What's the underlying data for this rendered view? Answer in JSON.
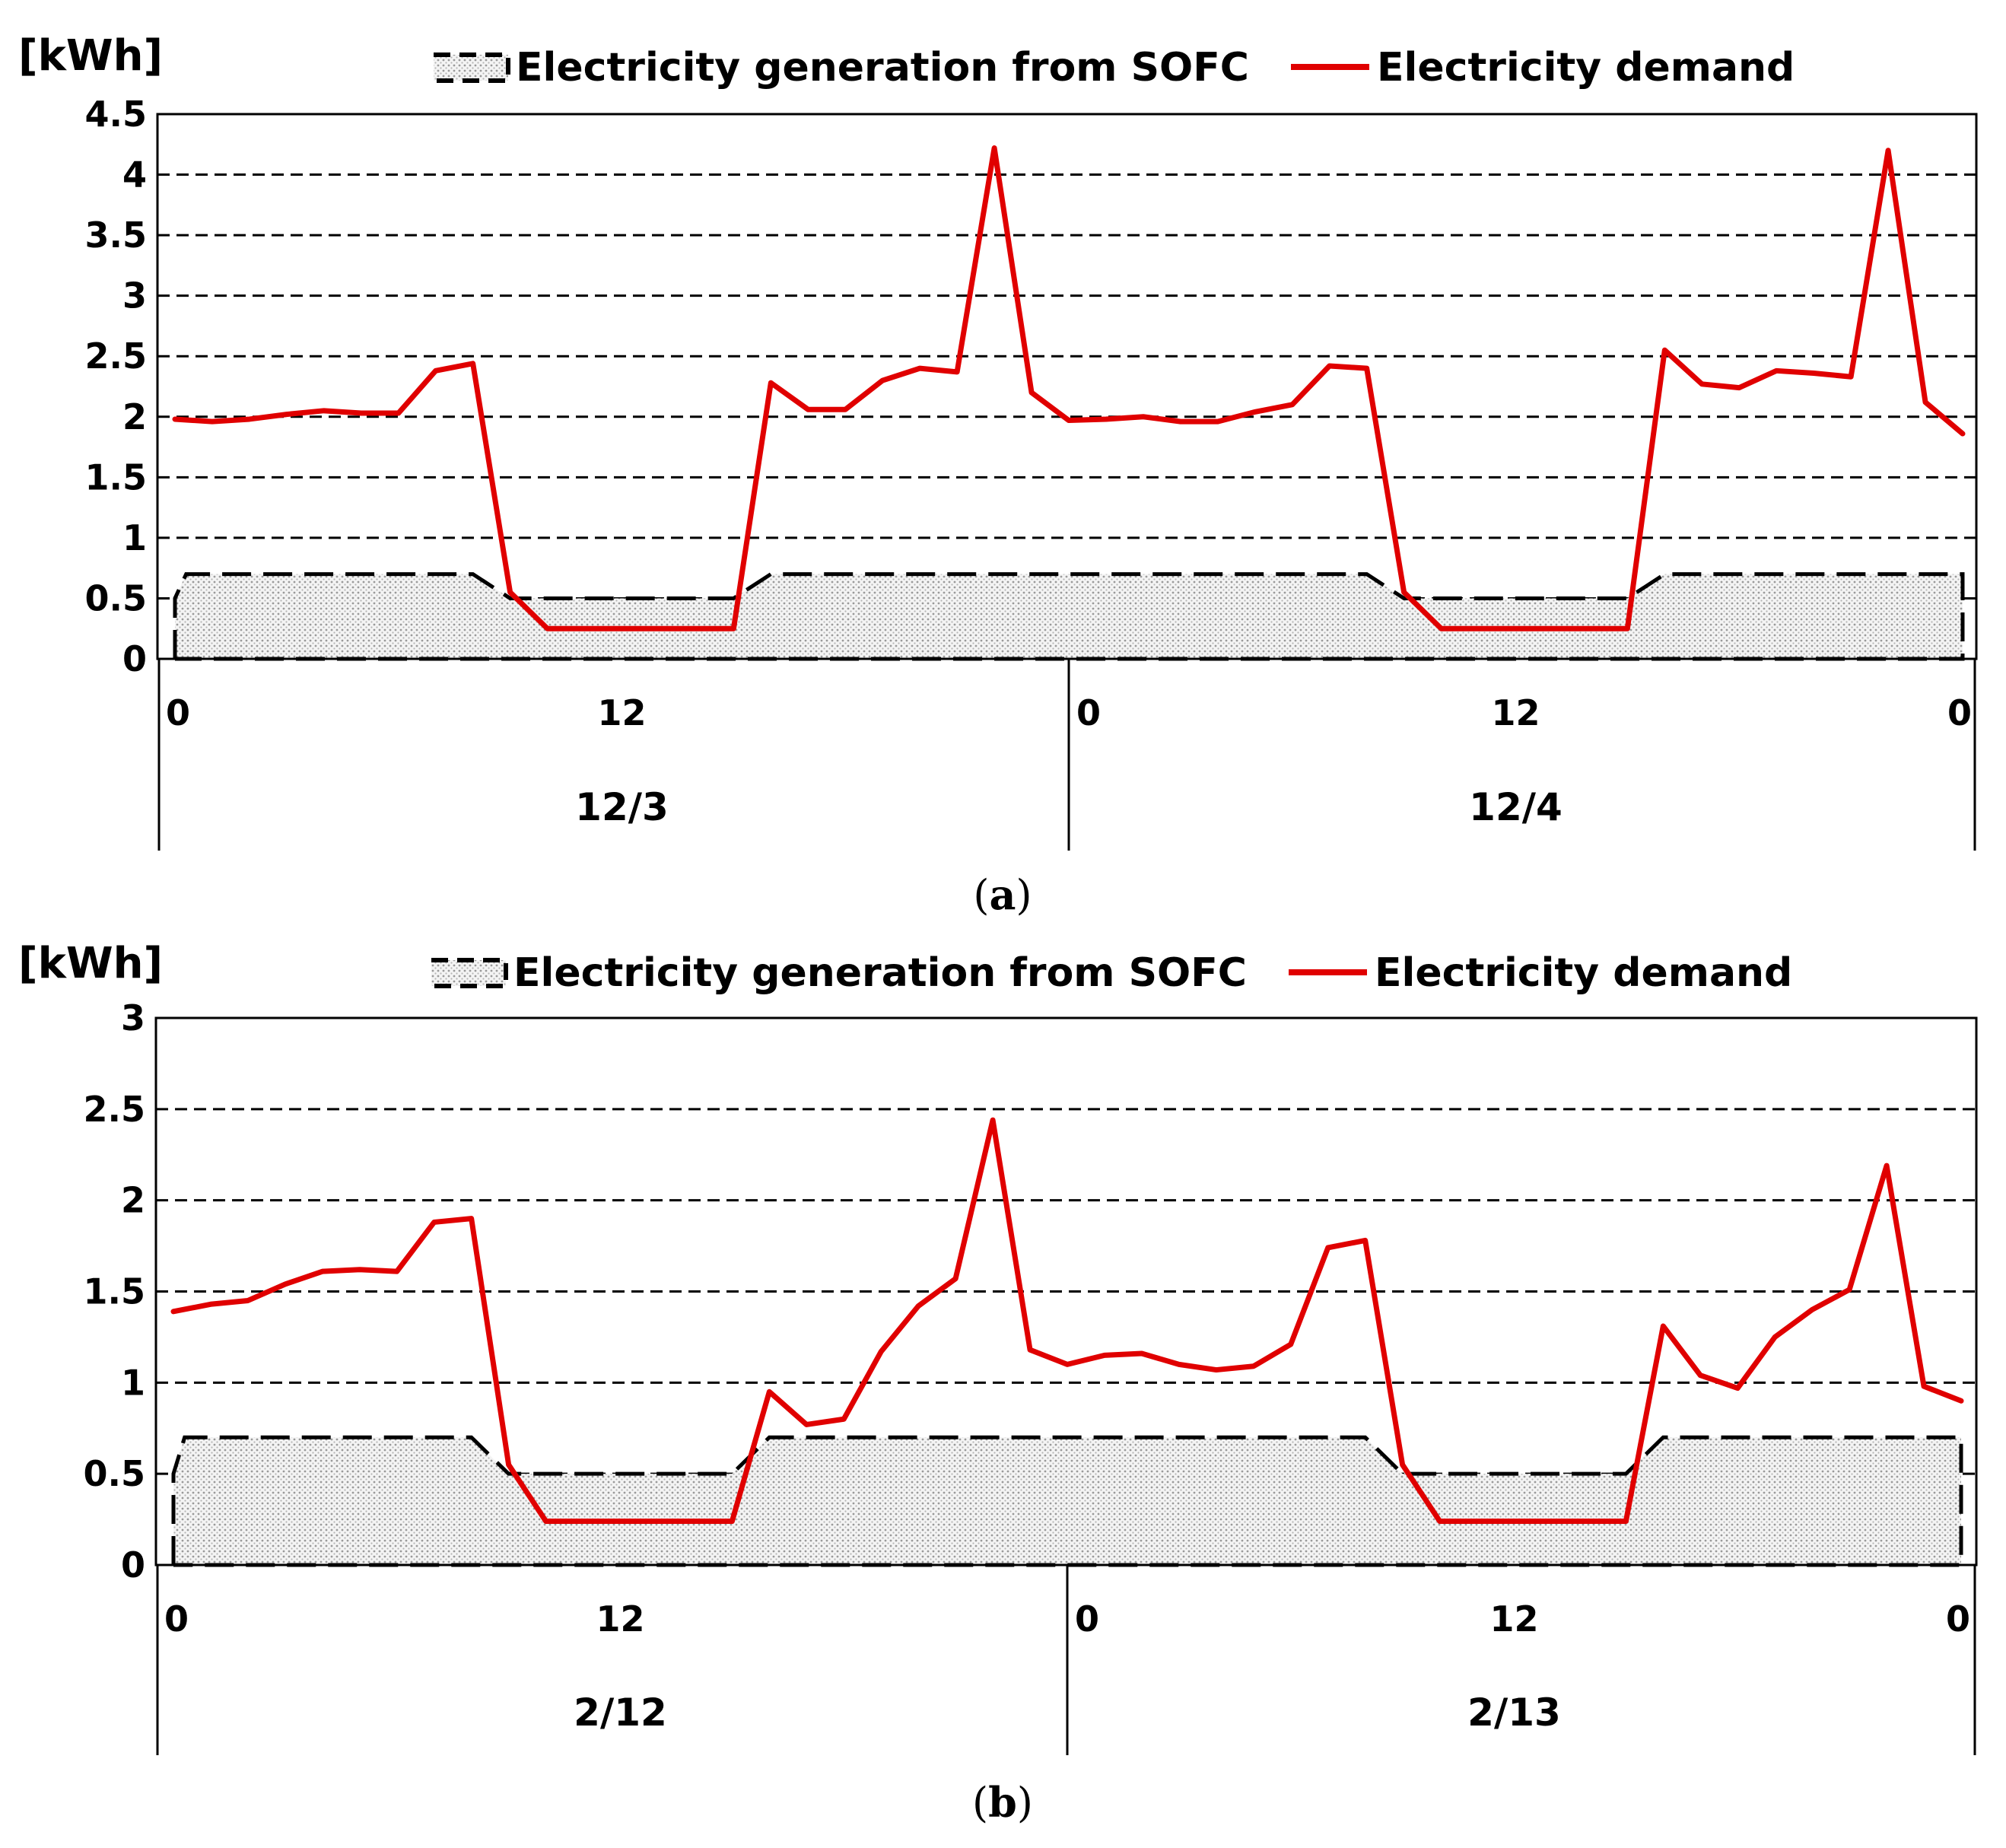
{
  "chart_data": [
    {
      "id": "a",
      "type": "area+line",
      "panel_label": "a",
      "unit_label": "[kWh]",
      "legend": [
        {
          "name": "Electricity generation from SOFC",
          "style": "dashed black border, dotted grey fill"
        },
        {
          "name": "Electricity demand",
          "style": "solid red line",
          "color": "#e00000"
        }
      ],
      "ylim": [
        0,
        4.5
      ],
      "y_ticks": [
        "0",
        "0.5",
        "1",
        "1.5",
        "2",
        "2.5",
        "3",
        "3.5",
        "4",
        "4.5"
      ],
      "y_tick_values": [
        0,
        0.5,
        1,
        1.5,
        2,
        2.5,
        3,
        3.5,
        4,
        4.5
      ],
      "grid": "horizontal dashed",
      "xlim": [
        0,
        48
      ],
      "x_ticks": [
        {
          "hour": 0,
          "label": "0"
        },
        {
          "hour": 12,
          "label": "12"
        },
        {
          "hour": 24,
          "label": "0"
        },
        {
          "hour": 36,
          "label": "12"
        },
        {
          "hour": 48,
          "label": "0"
        }
      ],
      "dates": [
        {
          "label": "12/3",
          "center_hour": 12
        },
        {
          "label": "12/4",
          "center_hour": 36
        }
      ],
      "series": [
        {
          "name": "Electricity generation from SOFC",
          "points": [
            [
              0,
              0.5
            ],
            [
              0.3,
              0.7
            ],
            [
              8,
              0.7
            ],
            [
              9,
              0.5
            ],
            [
              15,
              0.5
            ],
            [
              16,
              0.7
            ],
            [
              32,
              0.7
            ],
            [
              33,
              0.5
            ],
            [
              39,
              0.5
            ],
            [
              40,
              0.7
            ],
            [
              48,
              0.7
            ]
          ]
        },
        {
          "name": "Electricity demand",
          "points": [
            [
              0,
              1.98
            ],
            [
              1,
              1.96
            ],
            [
              2,
              1.98
            ],
            [
              3,
              2.02
            ],
            [
              4,
              2.05
            ],
            [
              5,
              2.03
            ],
            [
              6,
              2.03
            ],
            [
              7,
              2.38
            ],
            [
              8,
              2.44
            ],
            [
              9,
              0.55
            ],
            [
              10,
              0.25
            ],
            [
              11,
              0.25
            ],
            [
              12,
              0.25
            ],
            [
              13,
              0.25
            ],
            [
              14,
              0.25
            ],
            [
              15,
              0.25
            ],
            [
              16,
              2.28
            ],
            [
              17,
              2.06
            ],
            [
              18,
              2.06
            ],
            [
              19,
              2.3
            ],
            [
              20,
              2.4
            ],
            [
              21,
              2.37
            ],
            [
              22,
              4.22
            ],
            [
              23,
              2.2
            ],
            [
              24,
              1.97
            ],
            [
              25,
              1.98
            ],
            [
              26,
              2.0
            ],
            [
              27,
              1.96
            ],
            [
              28,
              1.96
            ],
            [
              29,
              2.04
            ],
            [
              30,
              2.1
            ],
            [
              31,
              2.42
            ],
            [
              32,
              2.4
            ],
            [
              33,
              0.55
            ],
            [
              34,
              0.25
            ],
            [
              35,
              0.25
            ],
            [
              36,
              0.25
            ],
            [
              37,
              0.25
            ],
            [
              38,
              0.25
            ],
            [
              39,
              0.25
            ],
            [
              40,
              2.55
            ],
            [
              41,
              2.27
            ],
            [
              42,
              2.24
            ],
            [
              43,
              2.38
            ],
            [
              44,
              2.36
            ],
            [
              45,
              2.33
            ],
            [
              46,
              4.2
            ],
            [
              47,
              2.12
            ],
            [
              48,
              1.86
            ]
          ]
        }
      ]
    },
    {
      "id": "b",
      "type": "area+line",
      "panel_label": "b",
      "unit_label": "[kWh]",
      "legend": [
        {
          "name": "Electricity generation from SOFC",
          "style": "dashed black border, dotted grey fill"
        },
        {
          "name": "Electricity demand",
          "style": "solid red line",
          "color": "#e00000"
        }
      ],
      "ylim": [
        0,
        3
      ],
      "y_ticks": [
        "0",
        "0.5",
        "1",
        "1.5",
        "2",
        "2.5",
        "3"
      ],
      "y_tick_values": [
        0,
        0.5,
        1,
        1.5,
        2,
        2.5,
        3
      ],
      "grid": "horizontal dashed",
      "xlim": [
        0,
        48
      ],
      "x_ticks": [
        {
          "hour": 0,
          "label": "0"
        },
        {
          "hour": 12,
          "label": "12"
        },
        {
          "hour": 24,
          "label": "0"
        },
        {
          "hour": 36,
          "label": "12"
        },
        {
          "hour": 48,
          "label": "0"
        }
      ],
      "dates": [
        {
          "label": "2/12",
          "center_hour": 12
        },
        {
          "label": "2/13",
          "center_hour": 36
        }
      ],
      "series": [
        {
          "name": "Electricity generation from SOFC",
          "points": [
            [
              0,
              0.5
            ],
            [
              0.3,
              0.7
            ],
            [
              8,
              0.7
            ],
            [
              9,
              0.5
            ],
            [
              15,
              0.5
            ],
            [
              16,
              0.7
            ],
            [
              32,
              0.7
            ],
            [
              33,
              0.5
            ],
            [
              39,
              0.5
            ],
            [
              40,
              0.7
            ],
            [
              48,
              0.7
            ]
          ]
        },
        {
          "name": "Electricity demand",
          "points": [
            [
              0,
              1.39
            ],
            [
              1,
              1.43
            ],
            [
              2,
              1.45
            ],
            [
              3,
              1.54
            ],
            [
              4,
              1.61
            ],
            [
              5,
              1.62
            ],
            [
              6,
              1.61
            ],
            [
              7,
              1.88
            ],
            [
              8,
              1.9
            ],
            [
              9,
              0.55
            ],
            [
              10,
              0.24
            ],
            [
              11,
              0.24
            ],
            [
              12,
              0.24
            ],
            [
              13,
              0.24
            ],
            [
              14,
              0.24
            ],
            [
              15,
              0.24
            ],
            [
              16,
              0.95
            ],
            [
              17,
              0.77
            ],
            [
              18,
              0.8
            ],
            [
              19,
              1.17
            ],
            [
              20,
              1.42
            ],
            [
              21,
              1.57
            ],
            [
              22,
              2.44
            ],
            [
              23,
              1.18
            ],
            [
              24,
              1.1
            ],
            [
              25,
              1.15
            ],
            [
              26,
              1.16
            ],
            [
              27,
              1.1
            ],
            [
              28,
              1.07
            ],
            [
              29,
              1.09
            ],
            [
              30,
              1.21
            ],
            [
              31,
              1.74
            ],
            [
              32,
              1.78
            ],
            [
              33,
              0.55
            ],
            [
              34,
              0.24
            ],
            [
              35,
              0.24
            ],
            [
              36,
              0.24
            ],
            [
              37,
              0.24
            ],
            [
              38,
              0.24
            ],
            [
              39,
              0.24
            ],
            [
              40,
              1.31
            ],
            [
              41,
              1.04
            ],
            [
              42,
              0.97
            ],
            [
              43,
              1.25
            ],
            [
              44,
              1.4
            ],
            [
              45,
              1.51
            ],
            [
              46,
              2.19
            ],
            [
              47,
              0.98
            ],
            [
              48,
              0.9
            ]
          ]
        }
      ]
    }
  ],
  "colors": {
    "demand_line": "#e00000",
    "sofc_border": "#000000",
    "sofc_fill_dot": "#9a9a9a",
    "grid": "#000000"
  }
}
